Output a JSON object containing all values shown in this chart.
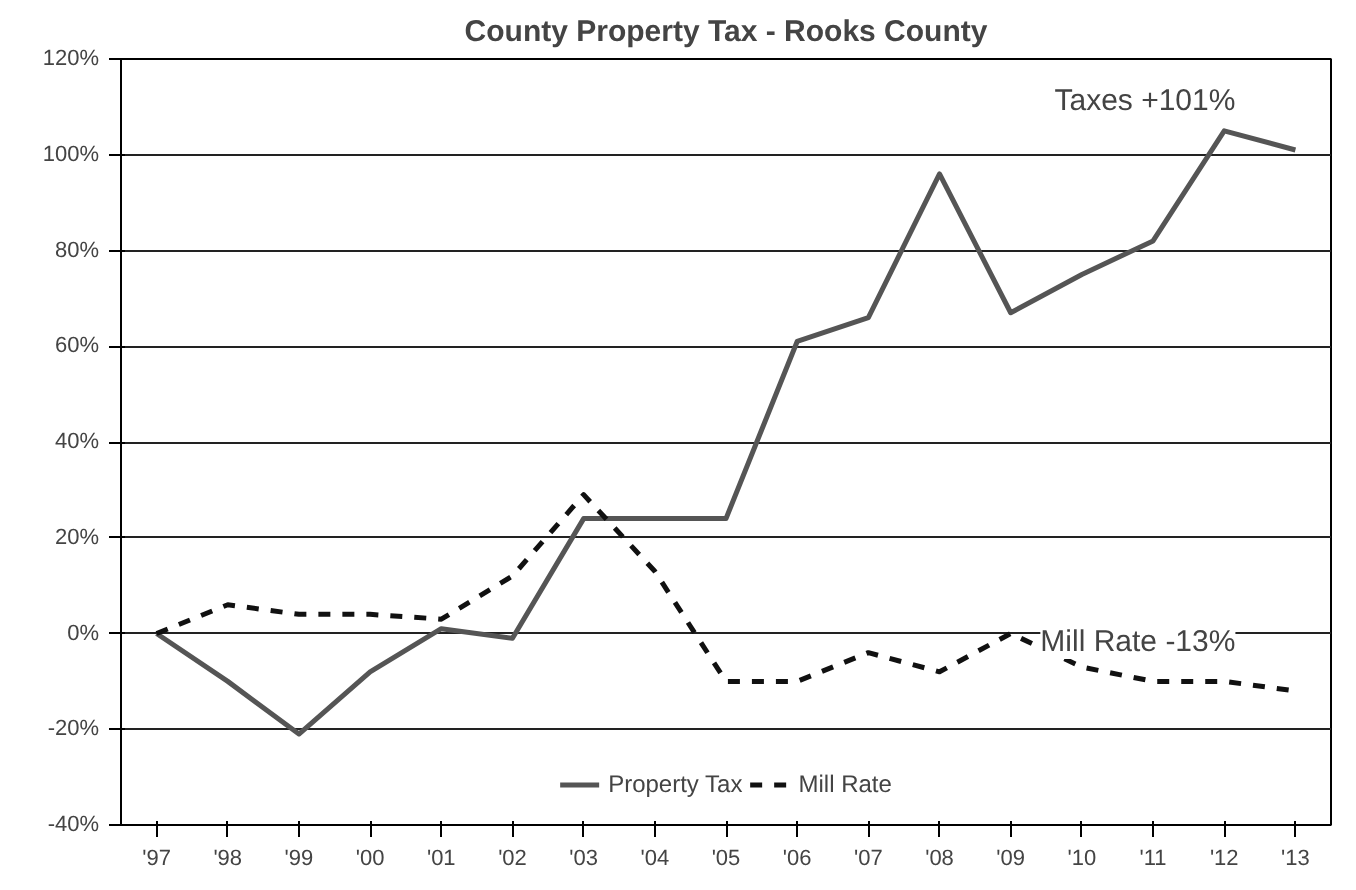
{
  "chart_data": {
    "type": "line",
    "title": "County Property Tax - Rooks County",
    "categories": [
      "'97",
      "'98",
      "'99",
      "'00",
      "'01",
      "'02",
      "'03",
      "'04",
      "'05",
      "'06",
      "'07",
      "'08",
      "'09",
      "'10",
      "'11",
      "'12",
      "'13"
    ],
    "series": [
      {
        "name": "Property Tax",
        "color": "#555555",
        "line_style": "solid",
        "values": [
          0,
          -10,
          -21,
          -8,
          1,
          -1,
          24,
          24,
          24,
          61,
          66,
          96,
          67,
          75,
          82,
          105,
          101
        ]
      },
      {
        "name": "Mill Rate",
        "color": "#111111",
        "line_style": "dashed",
        "values": [
          0,
          6,
          4,
          4,
          3,
          12,
          29,
          13,
          -10,
          -10,
          -4,
          -8,
          0,
          -7,
          -10,
          -10,
          -12
        ]
      }
    ],
    "ylim": [
      -40,
      120
    ],
    "yticks": [
      {
        "value": -40,
        "label": "-40%"
      },
      {
        "value": -20,
        "label": "-20%"
      },
      {
        "value": 0,
        "label": "0%"
      },
      {
        "value": 20,
        "label": "20%"
      },
      {
        "value": 40,
        "label": "40%"
      },
      {
        "value": 60,
        "label": "60%"
      },
      {
        "value": 80,
        "label": "80%"
      },
      {
        "value": 100,
        "label": "100%"
      },
      {
        "value": 120,
        "label": "120%"
      }
    ],
    "grid": "y",
    "legend": "bottom",
    "marker": "none",
    "annotations": [
      {
        "text": "Taxes +101%",
        "x": "'13",
        "y": 101
      },
      {
        "text": "Mill Rate -13%",
        "x": "'13",
        "y": -12
      }
    ]
  }
}
